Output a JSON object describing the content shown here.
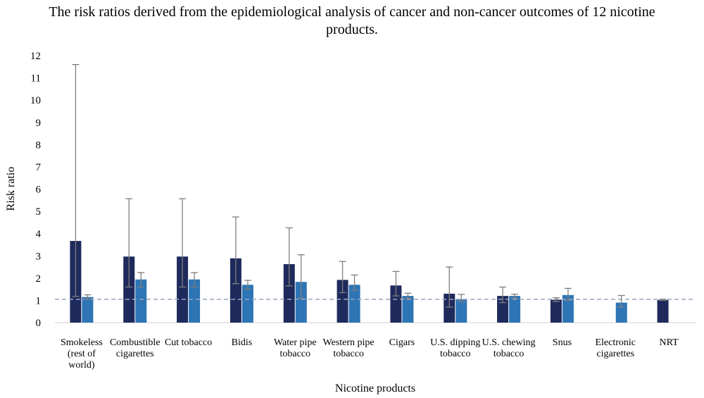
{
  "chart_data": {
    "type": "bar",
    "title": "The risk ratios derived from the epidemiological analysis of cancer and non-cancer outcomes of 12 nicotine products.",
    "xlabel": "Nicotine products",
    "ylabel": "Risk ratio",
    "ylim": [
      0,
      12
    ],
    "yticks": [
      0,
      1,
      2,
      3,
      4,
      5,
      6,
      7,
      8,
      9,
      10,
      11,
      12
    ],
    "reference_line": 1.05,
    "grid": false,
    "categories": [
      [
        "Smokeless",
        "(rest of",
        "world)"
      ],
      [
        "Combustible",
        "cigarettes"
      ],
      [
        "Cut tobacco"
      ],
      [
        "Bidis"
      ],
      [
        "Water pipe",
        "tobacco"
      ],
      [
        "Western pipe",
        "tobacco"
      ],
      [
        "Cigars"
      ],
      [
        "U.S. dipping",
        "tobacco"
      ],
      [
        "U.S. chewing",
        "tobacco"
      ],
      [
        "Snus"
      ],
      [
        "Electronic",
        "cigarettes"
      ],
      [
        "NRT"
      ]
    ],
    "series": [
      {
        "color": "#1f2a5c",
        "values": [
          3.67,
          2.97,
          2.97,
          2.89,
          2.63,
          1.92,
          1.67,
          1.3,
          1.2,
          1.03,
          null,
          1.02
        ],
        "error_low": [
          1.18,
          1.6,
          1.6,
          1.75,
          1.65,
          1.35,
          1.2,
          0.7,
          0.9,
          0.95,
          null,
          1.0
        ],
        "error_high": [
          11.6,
          5.57,
          5.57,
          4.75,
          4.26,
          2.75,
          2.3,
          2.5,
          1.6,
          1.12,
          null,
          1.05
        ]
      },
      {
        "color": "#2e75b6",
        "values": [
          1.15,
          1.94,
          1.94,
          1.7,
          1.83,
          1.7,
          1.2,
          1.05,
          1.2,
          1.24,
          0.9,
          null
        ],
        "error_low": [
          1.05,
          1.6,
          1.6,
          1.5,
          1.1,
          1.45,
          1.1,
          0.95,
          1.1,
          1.0,
          0.7,
          null
        ],
        "error_high": [
          1.25,
          2.25,
          2.25,
          1.9,
          3.05,
          2.14,
          1.32,
          1.27,
          1.28,
          1.54,
          1.22,
          null
        ]
      }
    ]
  }
}
